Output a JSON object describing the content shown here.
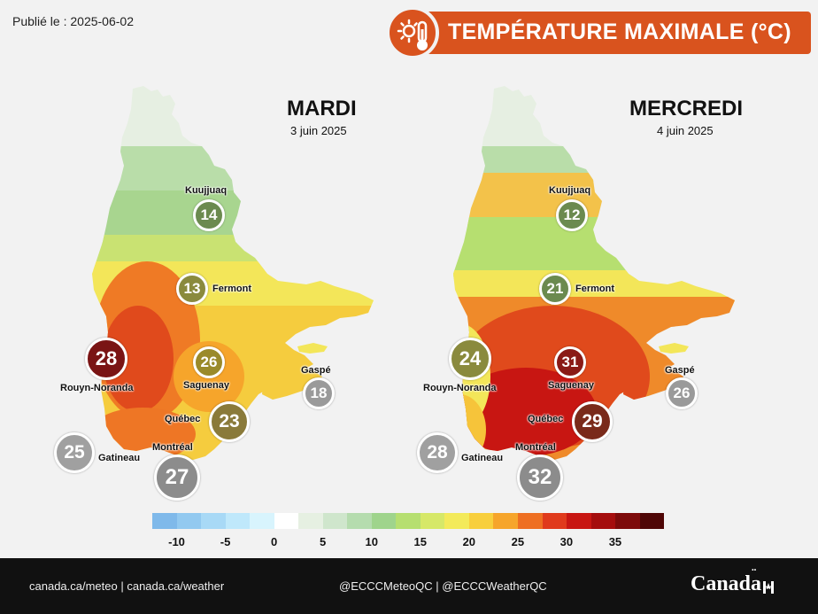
{
  "published": "Publié le : 2025-06-02",
  "title": "TEMPÉRATURE MAXIMALE (°C)",
  "title_icon": "sun-thermometer-icon",
  "colors": {
    "banner": "#d9531e",
    "footer": "#111111"
  },
  "maps": [
    {
      "day": "MARDI",
      "date": "3 juin 2025",
      "cities": [
        {
          "name": "Kuujjuaq",
          "temp": "14"
        },
        {
          "name": "Fermont",
          "temp": "13"
        },
        {
          "name": "Rouyn-Noranda",
          "temp": "28"
        },
        {
          "name": "Saguenay",
          "temp": "26"
        },
        {
          "name": "Gaspé",
          "temp": "18"
        },
        {
          "name": "Québec",
          "temp": "23"
        },
        {
          "name": "Gatineau",
          "temp": "25"
        },
        {
          "name": "Montréal",
          "temp": "27"
        }
      ]
    },
    {
      "day": "MERCREDI",
      "date": "4 juin 2025",
      "cities": [
        {
          "name": "Kuujjuaq",
          "temp": "12"
        },
        {
          "name": "Fermont",
          "temp": "21"
        },
        {
          "name": "Rouyn-Noranda",
          "temp": "24"
        },
        {
          "name": "Saguenay",
          "temp": "31"
        },
        {
          "name": "Gaspé",
          "temp": "26"
        },
        {
          "name": "Québec",
          "temp": "29"
        },
        {
          "name": "Gatineau",
          "temp": "28"
        },
        {
          "name": "Montréal",
          "temp": "32"
        }
      ]
    }
  ],
  "legend": {
    "colors": [
      "#7fb9ea",
      "#92c9f0",
      "#a8d9f6",
      "#bfe8fb",
      "#d8f4fd",
      "#ffffff",
      "#e6f0e2",
      "#cfe6cc",
      "#b5dcae",
      "#9fd48c",
      "#b6df70",
      "#d6e868",
      "#f3ea5a",
      "#f8cf3d",
      "#f6a52b",
      "#ee6f22",
      "#e03a1c",
      "#c81612",
      "#a50d0d",
      "#7d0a0a",
      "#4f0606"
    ],
    "labels": [
      {
        "text": "-10",
        "value": -10
      },
      {
        "text": "-5",
        "value": -5
      },
      {
        "text": "0",
        "value": 0
      },
      {
        "text": "5",
        "value": 5
      },
      {
        "text": "10",
        "value": 10
      },
      {
        "text": "15",
        "value": 15
      },
      {
        "text": "20",
        "value": 20
      },
      {
        "text": "25",
        "value": 25
      },
      {
        "text": "30",
        "value": 30
      },
      {
        "text": "35",
        "value": 35
      }
    ]
  },
  "footer": {
    "links": "canada.ca/meteo | canada.ca/weather",
    "social": "@ECCCMeteoQC | @ECCCWeatherQC",
    "logo": "Canadä"
  }
}
